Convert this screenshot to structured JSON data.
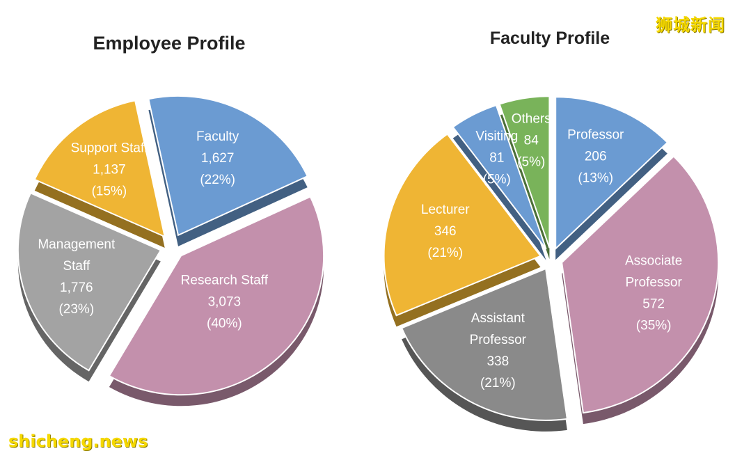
{
  "watermarks": {
    "top_right": "狮城新闻",
    "bottom_left": "shicheng.news"
  },
  "chart_data": [
    {
      "type": "pie",
      "title": "Employee Profile",
      "exploded": true,
      "three_d": true,
      "slices": [
        {
          "name": "Faculty",
          "value": 1627,
          "value_label": "1,627",
          "percent_label": "(22%)",
          "color": "#6b9bd2"
        },
        {
          "name": "Research Staff",
          "value": 3073,
          "value_label": "3,073",
          "percent_label": "(40%)",
          "color": "#c390ac"
        },
        {
          "name": "Management Staff",
          "value": 1776,
          "value_label": "1,776",
          "percent_label": "(23%)",
          "color": "#a3a3a3"
        },
        {
          "name": "Support Staff",
          "value": 1137,
          "value_label": "1,137",
          "percent_label": "(15%)",
          "color": "#efb534"
        }
      ]
    },
    {
      "type": "pie",
      "title": "Faculty Profile",
      "exploded": true,
      "three_d": true,
      "slices": [
        {
          "name": "Professor",
          "value": 206,
          "value_label": "206",
          "percent_label": "(13%)",
          "color": "#6b9bd2"
        },
        {
          "name": "Associate Professor",
          "value": 572,
          "value_label": "572",
          "percent_label": "(35%)",
          "color": "#c390ac"
        },
        {
          "name": "Assistant Professor",
          "value": 338,
          "value_label": "338",
          "percent_label": "(21%)",
          "color": "#8a8a8a"
        },
        {
          "name": "Lecturer",
          "value": 346,
          "value_label": "346",
          "percent_label": "(21%)",
          "color": "#efb534"
        },
        {
          "name": "Visiting",
          "value": 81,
          "value_label": "81",
          "percent_label": "(5%)",
          "color": "#6b9bd2"
        },
        {
          "name": "Others",
          "value": 84,
          "value_label": "84",
          "percent_label": "(5%)",
          "color": "#79b35a"
        }
      ]
    }
  ]
}
